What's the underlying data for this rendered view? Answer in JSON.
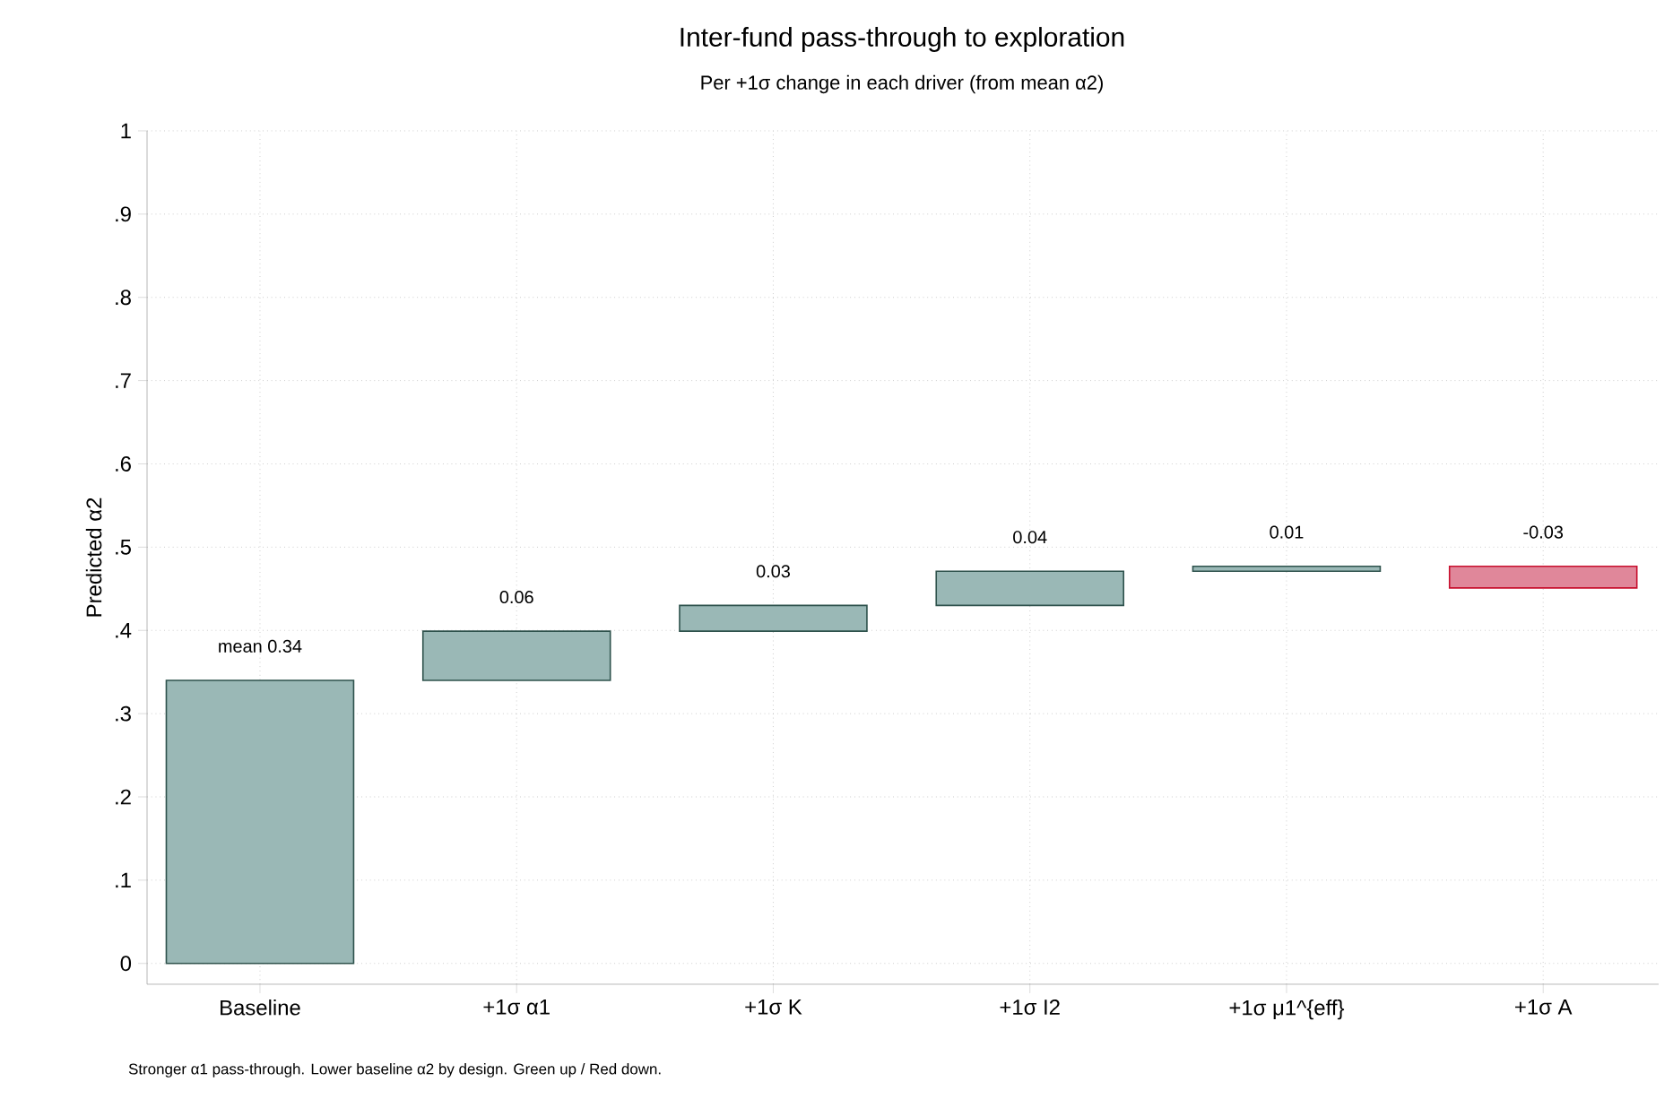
{
  "chart_data": {
    "type": "bar",
    "title": "Inter-fund pass-through to exploration",
    "subtitle": "Per +1σ change in each driver (from mean α2)",
    "ylabel": "Predicted α2",
    "categories": [
      "Baseline",
      "+1σ α1",
      "+1σ K",
      "+1σ I2",
      "+1σ μ1^{eff}",
      "+1σ A"
    ],
    "values": [
      0.34,
      0.059,
      0.031,
      0.041,
      0.006,
      -0.026
    ],
    "base": [
      0,
      0.34,
      0.399,
      0.43,
      0.471,
      0.477
    ],
    "value_labels": [
      "mean 0.34",
      "0.06",
      "0.03",
      "0.04",
      "0.01",
      "-0.03"
    ],
    "colors": [
      "#9ab8b6",
      "#9ab8b6",
      "#9ab8b6",
      "#9ab8b6",
      "#9ab8b6",
      "#e0879a"
    ],
    "ylim": [
      -0.025,
      1
    ],
    "yticks": [
      0,
      {
        "value": 0.1,
        "label": ".1"
      },
      {
        "value": 0.2,
        "label": ".2"
      },
      {
        "value": 0.3,
        "label": ".3"
      },
      {
        "value": 0.4,
        "label": ".4"
      },
      {
        "value": 0.5,
        "label": ".5"
      },
      {
        "value": 0.6,
        "label": ".6"
      },
      {
        "value": 0.7,
        "label": ".7"
      },
      {
        "value": 0.8,
        "label": ".8"
      },
      {
        "value": 0.9,
        "label": ".9"
      },
      1
    ],
    "grid": true,
    "annotations": [
      "Stronger α1 pass-through. Lower baseline α2 by design. Green up / Red down."
    ]
  }
}
